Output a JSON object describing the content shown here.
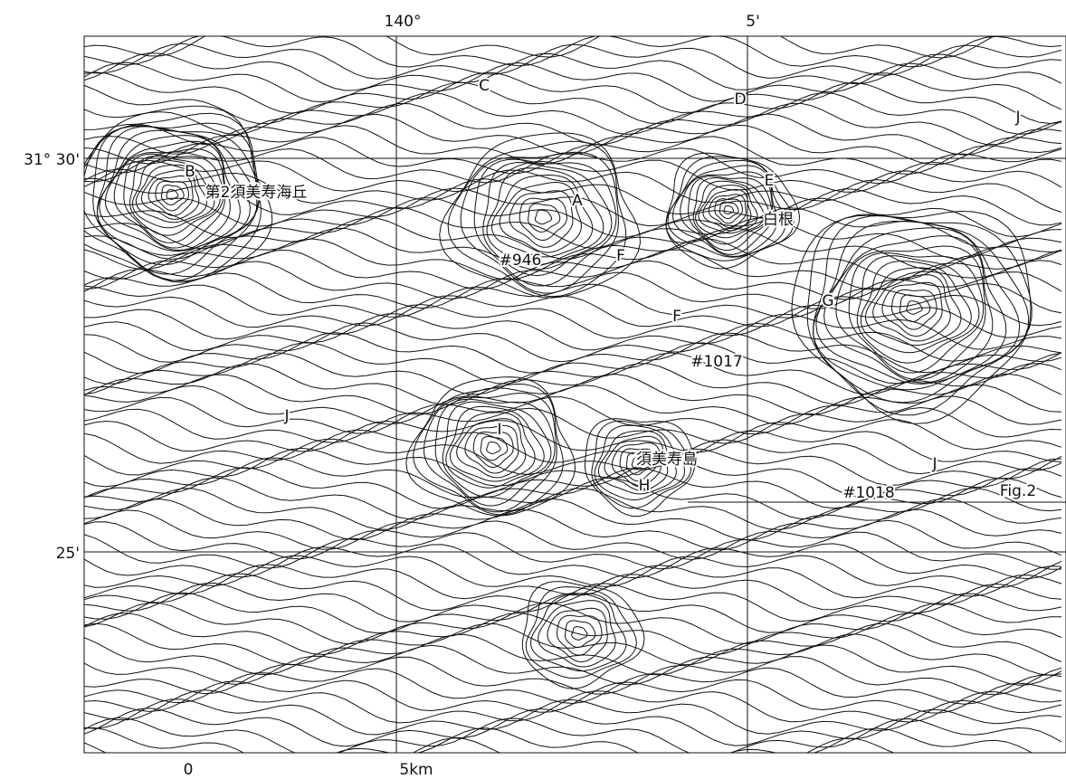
{
  "axes": {
    "top": [
      "140°",
      "5'"
    ],
    "left": [
      "31° 30'",
      "25'"
    ],
    "scale": [
      "0",
      "5km"
    ]
  },
  "labels": [
    "B",
    "第2須美寿海丘",
    "C",
    "D",
    "J",
    "A",
    "E",
    "白根",
    "#946",
    "F",
    "F",
    "G",
    "#1017",
    "J",
    "I",
    "須美寿島",
    "H",
    "#1018",
    "J",
    "Fig.2"
  ]
}
